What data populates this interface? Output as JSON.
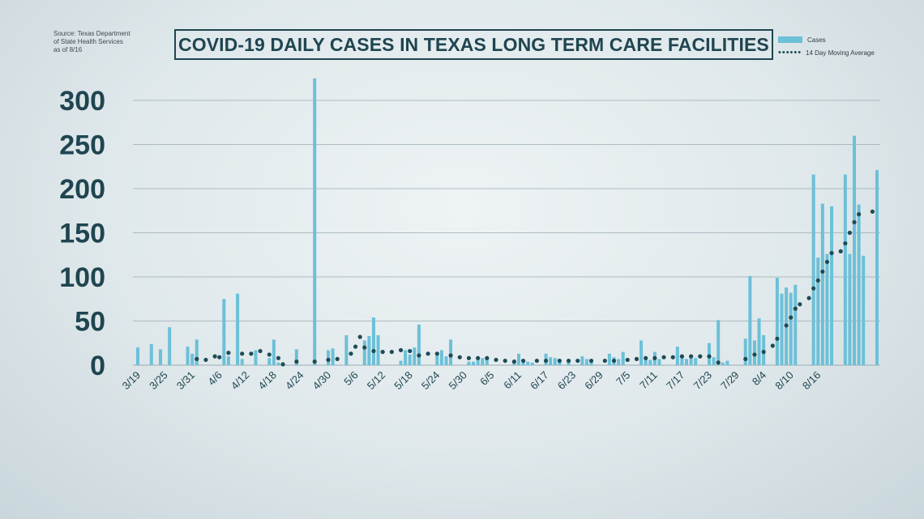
{
  "source": {
    "line1": "Source: Texas Department",
    "line2": "of State Health Services",
    "line3": "as of 8/16"
  },
  "colors": {
    "bar": "#6cc0d8",
    "dots": "#1e4b55",
    "title": "#1f4550",
    "axis_text": "#1f4550",
    "grid": "#9aabb2"
  },
  "chart_data": {
    "type": "bar",
    "title": "COVID-19 DAILY CASES IN TEXAS LONG TERM CARE FACILITIES",
    "legend_position": "top-right",
    "grid": true,
    "ylim": [
      0,
      300
    ],
    "yticks": [
      0,
      50,
      100,
      150,
      200,
      250,
      300
    ],
    "x_ticks": [
      "3/19",
      "3/25",
      "3/31",
      "4/6",
      "4/12",
      "4/18",
      "4/24",
      "4/30",
      "5/6",
      "5/12",
      "5/18",
      "5/24",
      "5/30",
      "6/5",
      "6/11",
      "6/17",
      "6/23",
      "6/29",
      "7/5",
      "7/11",
      "7/17",
      "7/23",
      "7/29",
      "8/4",
      "8/10",
      "8/16"
    ],
    "x_start": "3/19",
    "series": [
      {
        "name": "Cases",
        "kind": "bar",
        "values": [
          20,
          0,
          0,
          24,
          0,
          18,
          0,
          43,
          0,
          0,
          0,
          21,
          13,
          29,
          0,
          0,
          0,
          0,
          0,
          75,
          10,
          0,
          81,
          7,
          0,
          0,
          17,
          0,
          0,
          8,
          29,
          3,
          0,
          0,
          0,
          18,
          0,
          0,
          0,
          325,
          0,
          0,
          17,
          19,
          0,
          0,
          34,
          0,
          0,
          0,
          28,
          33,
          54,
          34,
          0,
          0,
          0,
          0,
          5,
          17,
          12,
          20,
          46,
          0,
          0,
          0,
          11,
          17,
          10,
          29,
          0,
          0,
          0,
          4,
          4,
          7,
          8,
          8,
          0,
          0,
          0,
          0,
          0,
          5,
          13,
          4,
          4,
          3,
          0,
          0,
          13,
          9,
          8,
          7,
          0,
          6,
          0,
          0,
          10,
          7,
          5,
          0,
          0,
          0,
          13,
          9,
          7,
          15,
          0,
          0,
          0,
          28,
          9,
          6,
          15,
          7,
          0,
          0,
          0,
          21,
          11,
          7,
          11,
          8,
          0,
          0,
          25,
          9,
          51,
          3,
          5,
          0,
          0,
          0,
          30,
          101,
          28,
          53,
          34,
          0,
          0,
          99,
          81,
          88,
          82,
          91,
          0,
          0,
          0,
          216,
          122,
          183,
          126,
          180,
          0,
          0,
          216,
          126,
          260,
          182,
          124,
          0,
          0,
          221
        ]
      },
      {
        "name": "14 Day Moving Average",
        "kind": "dotted-line",
        "values": [
          null,
          null,
          null,
          null,
          null,
          null,
          null,
          null,
          null,
          null,
          null,
          null,
          null,
          7,
          null,
          6,
          null,
          10,
          9,
          null,
          14,
          null,
          null,
          13,
          null,
          13,
          null,
          16,
          null,
          12,
          null,
          8,
          1,
          null,
          null,
          4,
          null,
          null,
          null,
          4,
          null,
          null,
          6,
          null,
          7,
          null,
          null,
          13,
          21,
          32,
          20,
          null,
          16,
          null,
          15,
          null,
          15,
          null,
          17,
          null,
          16,
          null,
          11,
          null,
          13,
          null,
          13,
          null,
          null,
          11,
          null,
          9,
          null,
          8,
          null,
          8,
          null,
          8,
          null,
          6,
          null,
          5,
          null,
          4,
          null,
          5,
          null,
          null,
          5,
          null,
          5,
          null,
          null,
          5,
          null,
          5,
          null,
          5,
          null,
          null,
          5,
          null,
          null,
          5,
          null,
          5,
          null,
          null,
          6,
          null,
          7,
          null,
          8,
          null,
          8,
          null,
          9,
          null,
          9,
          null,
          10,
          null,
          10,
          null,
          10,
          null,
          10,
          null,
          3,
          null,
          null,
          null,
          null,
          null,
          7,
          null,
          12,
          null,
          15,
          null,
          22,
          30,
          null,
          45,
          54,
          64,
          69,
          null,
          76,
          87,
          96,
          106,
          117,
          127,
          null,
          129,
          138,
          150,
          162,
          171,
          null,
          null,
          174
        ]
      }
    ]
  }
}
